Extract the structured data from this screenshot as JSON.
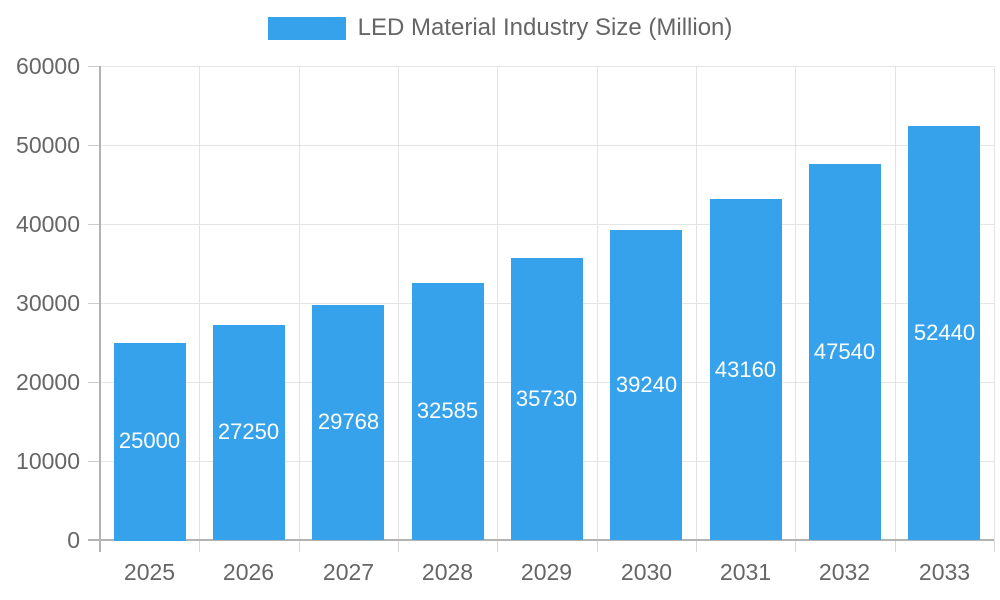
{
  "chart_data": {
    "type": "bar",
    "title": "",
    "legend": {
      "position": "top",
      "label": "LED Material Industry Size (Million)"
    },
    "categories": [
      "2025",
      "2026",
      "2027",
      "2028",
      "2029",
      "2030",
      "2031",
      "2032",
      "2033"
    ],
    "series": [
      {
        "name": "LED Material Industry Size (Million)",
        "values": [
          25000,
          27250,
          29768,
          32585,
          35730,
          39240,
          43160,
          47540,
          52440
        ]
      }
    ],
    "ylim": [
      0,
      60000
    ],
    "yticks": [
      0,
      10000,
      20000,
      30000,
      40000,
      50000,
      60000
    ],
    "grid": true,
    "value_labels": "inside-center",
    "colors": {
      "bar": "#36A2EB",
      "bar_value_label": "#ffffff",
      "axis_text": "#666666",
      "gridline": "#e5e5e5",
      "axis_line": "#b3b3b3",
      "background": "#ffffff"
    }
  }
}
